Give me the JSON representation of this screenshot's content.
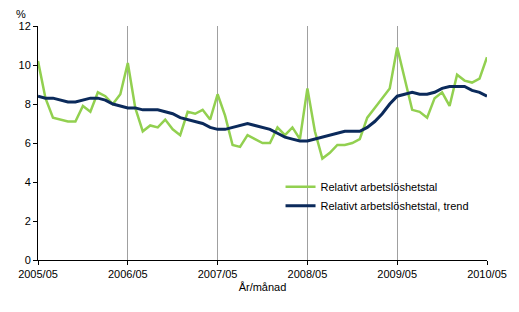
{
  "chart_data": {
    "type": "line",
    "x_label": "År/månad",
    "y_label": "%",
    "categories": [
      "2005/05",
      null,
      null,
      null,
      null,
      null,
      null,
      null,
      null,
      null,
      null,
      null,
      "2006/05",
      null,
      null,
      null,
      null,
      null,
      null,
      null,
      null,
      null,
      null,
      null,
      "2007/05",
      null,
      null,
      null,
      null,
      null,
      null,
      null,
      null,
      null,
      null,
      null,
      "2008/05",
      null,
      null,
      null,
      null,
      null,
      null,
      null,
      null,
      null,
      null,
      null,
      "2009/05",
      null,
      null,
      null,
      null,
      null,
      null,
      null,
      null,
      null,
      null,
      null,
      "2010/05"
    ],
    "series": [
      {
        "name": "Relativt arbetslöshetstal",
        "color": "#92d050",
        "values": [
          10.2,
          8.3,
          7.3,
          7.2,
          7.1,
          7.1,
          7.9,
          7.6,
          8.6,
          8.4,
          8.0,
          8.5,
          10.1,
          7.8,
          6.6,
          6.9,
          6.8,
          7.2,
          6.7,
          6.4,
          7.6,
          7.5,
          7.7,
          7.2,
          8.5,
          7.4,
          5.9,
          5.8,
          6.4,
          6.2,
          6.0,
          6.0,
          6.8,
          6.4,
          6.8,
          6.2,
          8.8,
          6.6,
          5.2,
          5.5,
          5.9,
          5.9,
          6.0,
          6.2,
          7.3,
          7.8,
          8.3,
          8.8,
          10.9,
          9.3,
          7.7,
          7.6,
          7.3,
          8.3,
          8.6,
          7.9,
          9.5,
          9.2,
          9.1,
          9.3,
          10.4
        ]
      },
      {
        "name": "Relativt arbetslöshetstal, trend",
        "color": "#0b2a5b",
        "values": [
          8.4,
          8.3,
          8.3,
          8.2,
          8.1,
          8.1,
          8.2,
          8.3,
          8.3,
          8.2,
          8.0,
          7.9,
          7.8,
          7.8,
          7.7,
          7.7,
          7.7,
          7.6,
          7.5,
          7.3,
          7.2,
          7.1,
          7.0,
          6.8,
          6.7,
          6.7,
          6.8,
          6.9,
          7.0,
          6.9,
          6.8,
          6.7,
          6.5,
          6.3,
          6.2,
          6.1,
          6.1,
          6.2,
          6.3,
          6.4,
          6.5,
          6.6,
          6.6,
          6.6,
          6.8,
          7.1,
          7.5,
          8.0,
          8.4,
          8.5,
          8.6,
          8.5,
          8.5,
          8.6,
          8.8,
          8.9,
          8.9,
          8.9,
          8.7,
          8.6,
          8.4
        ]
      }
    ],
    "ylim": [
      0,
      12
    ],
    "yticks": [
      0,
      2,
      4,
      6,
      8,
      10,
      12
    ],
    "grid": true,
    "legend": "lower right"
  }
}
